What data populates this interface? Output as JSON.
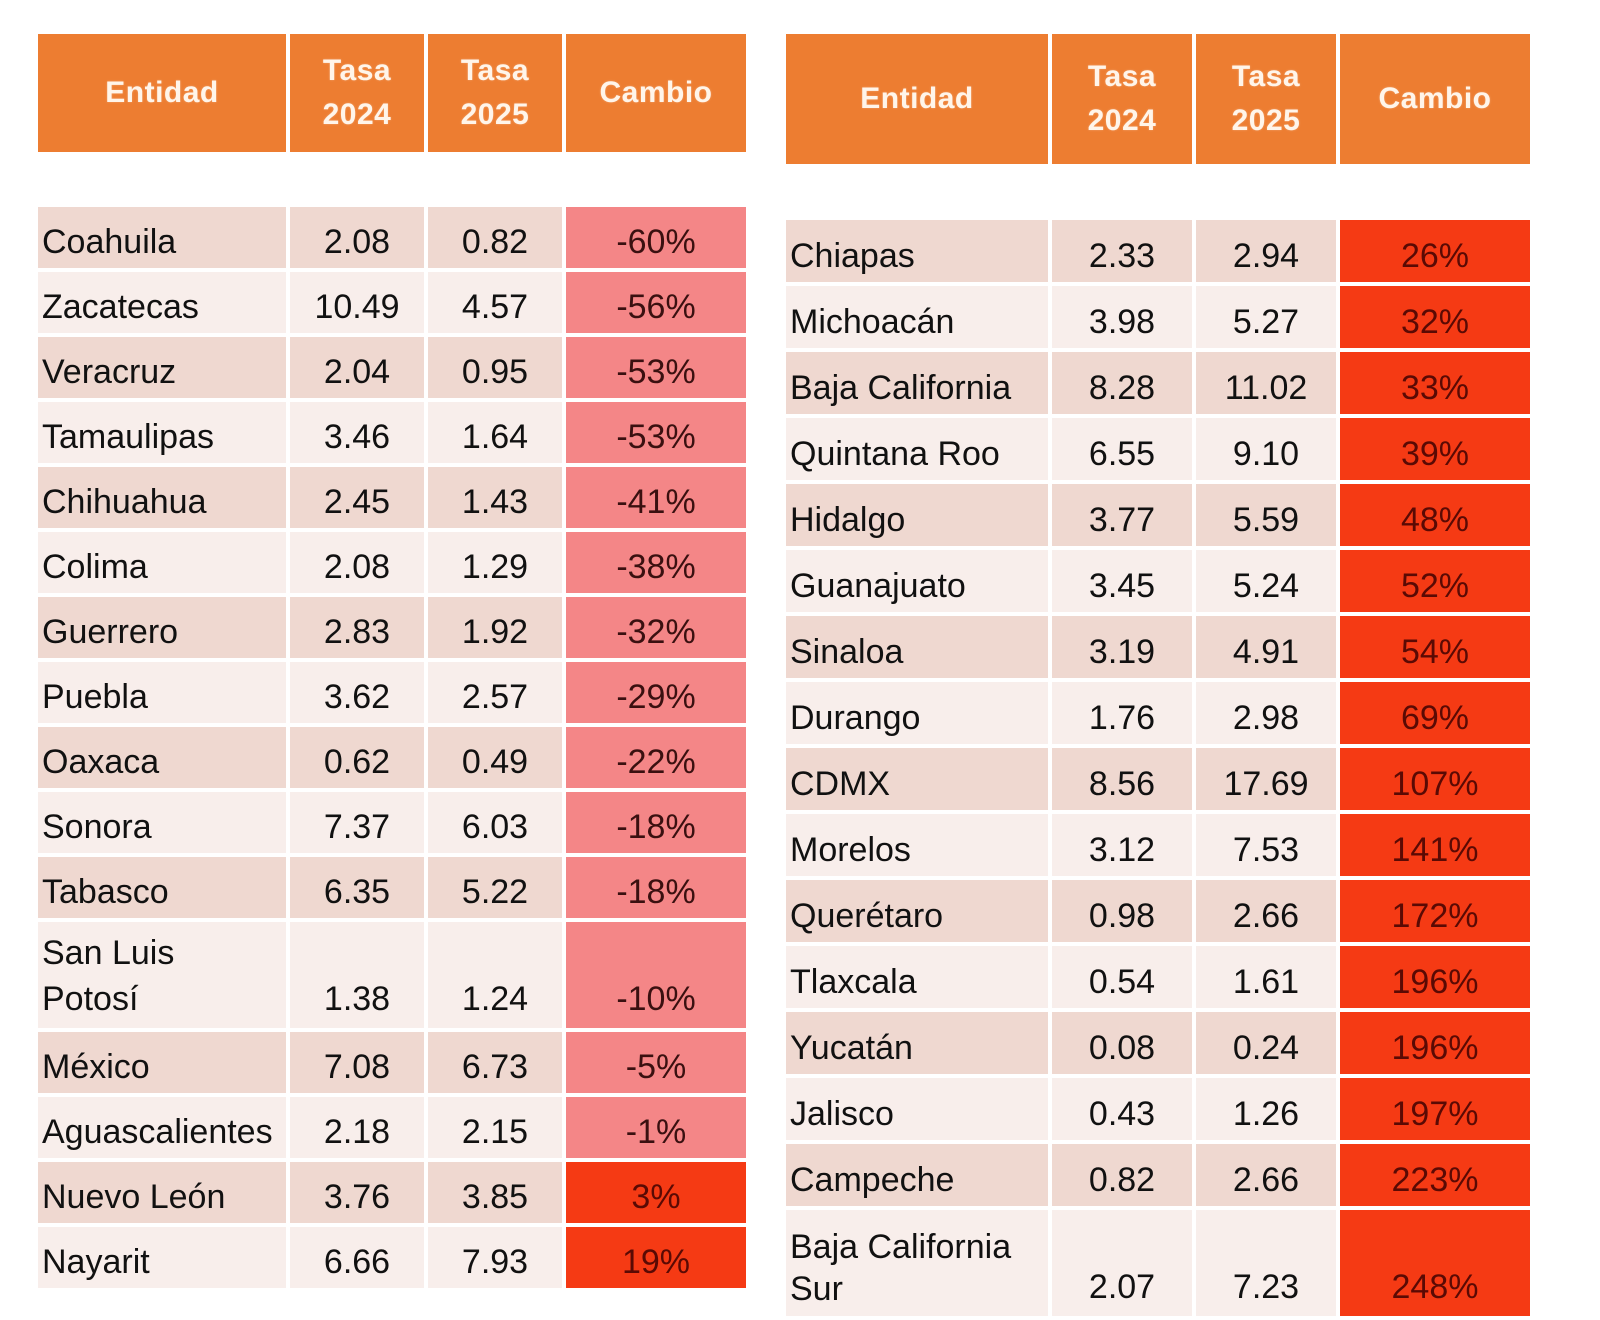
{
  "colors": {
    "header_bg": "#ed7d31",
    "negative_change_bg": "#f48687",
    "positive_change_bg": "#f53a14",
    "row_odd_bg": "#efd8d0",
    "row_even_bg": "#f8eeeb"
  },
  "tables": [
    {
      "headers": {
        "entity": "Entidad",
        "rate2024_line1": "Tasa",
        "rate2024_line2": "2024",
        "rate2025_line1": "Tasa",
        "rate2025_line2": "2025",
        "change": "Cambio"
      },
      "rows": [
        {
          "entity": "Coahuila",
          "rate2024": "2.08",
          "rate2025": "0.82",
          "change": "-60%"
        },
        {
          "entity": "Zacatecas",
          "rate2024": "10.49",
          "rate2025": "4.57",
          "change": "-56%"
        },
        {
          "entity": "Veracruz",
          "rate2024": "2.04",
          "rate2025": "0.95",
          "change": "-53%"
        },
        {
          "entity": "Tamaulipas",
          "rate2024": "3.46",
          "rate2025": "1.64",
          "change": "-53%"
        },
        {
          "entity": "Chihuahua",
          "rate2024": "2.45",
          "rate2025": "1.43",
          "change": "-41%"
        },
        {
          "entity": "Colima",
          "rate2024": "2.08",
          "rate2025": "1.29",
          "change": "-38%"
        },
        {
          "entity": "Guerrero",
          "rate2024": "2.83",
          "rate2025": "1.92",
          "change": "-32%"
        },
        {
          "entity": "Puebla",
          "rate2024": "3.62",
          "rate2025": "2.57",
          "change": "-29%"
        },
        {
          "entity": "Oaxaca",
          "rate2024": "0.62",
          "rate2025": "0.49",
          "change": "-22%"
        },
        {
          "entity": "Sonora",
          "rate2024": "7.37",
          "rate2025": "6.03",
          "change": "-18%"
        },
        {
          "entity": "Tabasco",
          "rate2024": "6.35",
          "rate2025": "5.22",
          "change": "-18%"
        },
        {
          "entity_line1": "San Luis",
          "entity_line2": "Potosí",
          "rate2024": "1.38",
          "rate2025": "1.24",
          "change": "-10%"
        },
        {
          "entity": "México",
          "rate2024": "7.08",
          "rate2025": "6.73",
          "change": "-5%"
        },
        {
          "entity": "Aguascalientes",
          "rate2024": "2.18",
          "rate2025": "2.15",
          "change": "-1%"
        },
        {
          "entity": "Nuevo León",
          "rate2024": "3.76",
          "rate2025": "3.85",
          "change": "3%"
        },
        {
          "entity": "Nayarit",
          "rate2024": "6.66",
          "rate2025": "7.93",
          "change": "19%"
        }
      ]
    },
    {
      "headers": {
        "entity": "Entidad",
        "rate2024_line1": "Tasa",
        "rate2024_line2": "2024",
        "rate2025_line1": "Tasa",
        "rate2025_line2": "2025",
        "change": "Cambio"
      },
      "rows": [
        {
          "entity": "Chiapas",
          "rate2024": "2.33",
          "rate2025": "2.94",
          "change": "26%"
        },
        {
          "entity": "Michoacán",
          "rate2024": "3.98",
          "rate2025": "5.27",
          "change": "32%"
        },
        {
          "entity": "Baja California",
          "rate2024": "8.28",
          "rate2025": "11.02",
          "change": "33%"
        },
        {
          "entity": "Quintana Roo",
          "rate2024": "6.55",
          "rate2025": "9.10",
          "change": "39%"
        },
        {
          "entity": "Hidalgo",
          "rate2024": "3.77",
          "rate2025": "5.59",
          "change": "48%"
        },
        {
          "entity": "Guanajuato",
          "rate2024": "3.45",
          "rate2025": "5.24",
          "change": "52%"
        },
        {
          "entity": "Sinaloa",
          "rate2024": "3.19",
          "rate2025": "4.91",
          "change": "54%"
        },
        {
          "entity": "Durango",
          "rate2024": "1.76",
          "rate2025": "2.98",
          "change": "69%"
        },
        {
          "entity": "CDMX",
          "rate2024": "8.56",
          "rate2025": "17.69",
          "change": "107%"
        },
        {
          "entity": "Morelos",
          "rate2024": "3.12",
          "rate2025": "7.53",
          "change": "141%"
        },
        {
          "entity": "Querétaro",
          "rate2024": "0.98",
          "rate2025": "2.66",
          "change": "172%"
        },
        {
          "entity": "Tlaxcala",
          "rate2024": "0.54",
          "rate2025": "1.61",
          "change": "196%"
        },
        {
          "entity": "Yucatán",
          "rate2024": "0.08",
          "rate2025": "0.24",
          "change": "196%"
        },
        {
          "entity": "Jalisco",
          "rate2024": "0.43",
          "rate2025": "1.26",
          "change": "197%"
        },
        {
          "entity": "Campeche",
          "rate2024": "0.82",
          "rate2025": "2.66",
          "change": "223%"
        },
        {
          "entity_line1": "Baja California",
          "entity_line2": "Sur",
          "rate2024": "2.07",
          "rate2025": "7.23",
          "change": "248%"
        }
      ]
    }
  ]
}
